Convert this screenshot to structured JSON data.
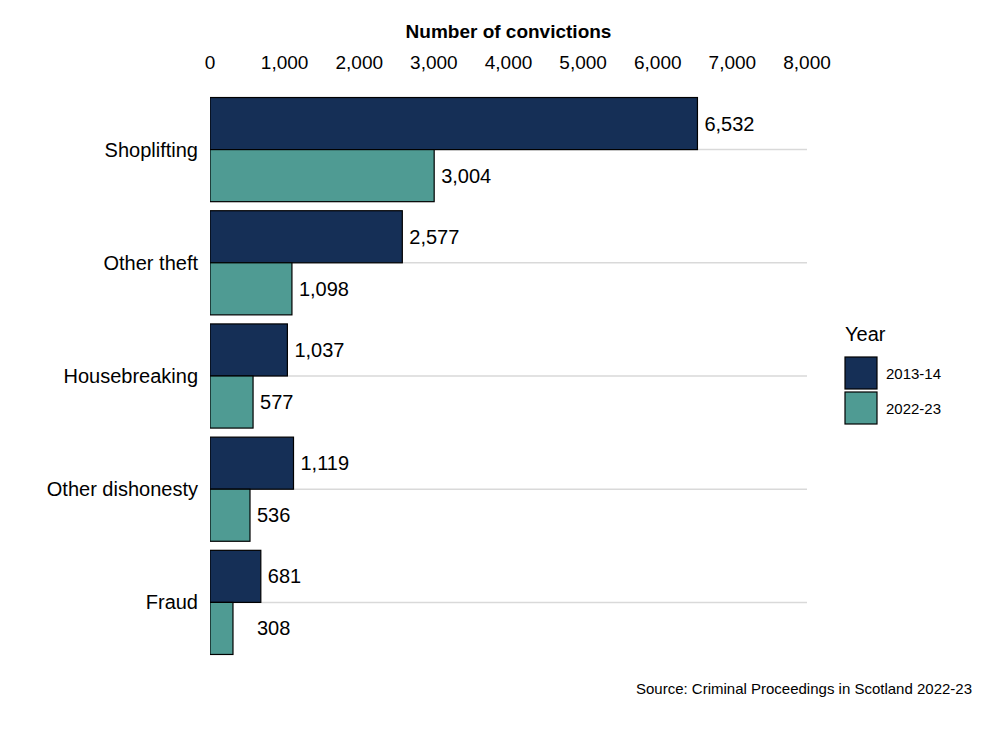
{
  "chart_data": {
    "type": "bar",
    "orientation": "horizontal",
    "x_label": "Number of convictions",
    "categories": [
      "Shoplifting",
      "Other theft",
      "Housebreaking",
      "Other dishonesty",
      "Fraud"
    ],
    "series": [
      {
        "name": "2013-14",
        "color": "#152f56",
        "values": [
          6532,
          2577,
          1037,
          1119,
          681
        ],
        "value_labels": [
          "6,532",
          "2,577",
          "1,037",
          "1,119",
          "681"
        ]
      },
      {
        "name": "2022-23",
        "color": "#4f9b93",
        "values": [
          3004,
          1098,
          577,
          536,
          308
        ],
        "value_labels": [
          "3,004",
          "1,098",
          "577",
          "536",
          "308"
        ]
      }
    ],
    "xlim": [
      0,
      8000
    ],
    "xticks": [
      0,
      {
        "value": 1000,
        "label": "1,000"
      },
      {
        "value": 2000,
        "label": "2,000"
      },
      {
        "value": 3000,
        "label": "3,000"
      },
      {
        "value": 4000,
        "label": "4,000"
      },
      {
        "value": 5000,
        "label": "5,000"
      },
      {
        "value": 6000,
        "label": "6,000"
      },
      {
        "value": 7000,
        "label": "7,000"
      },
      {
        "value": 8000,
        "label": "8,000"
      }
    ],
    "grid": true,
    "data_labels": true,
    "legend": "right",
    "legend_title": "Year",
    "annotations": [
      "Source: Criminal Proceedings in Scotland 2022-23"
    ]
  }
}
